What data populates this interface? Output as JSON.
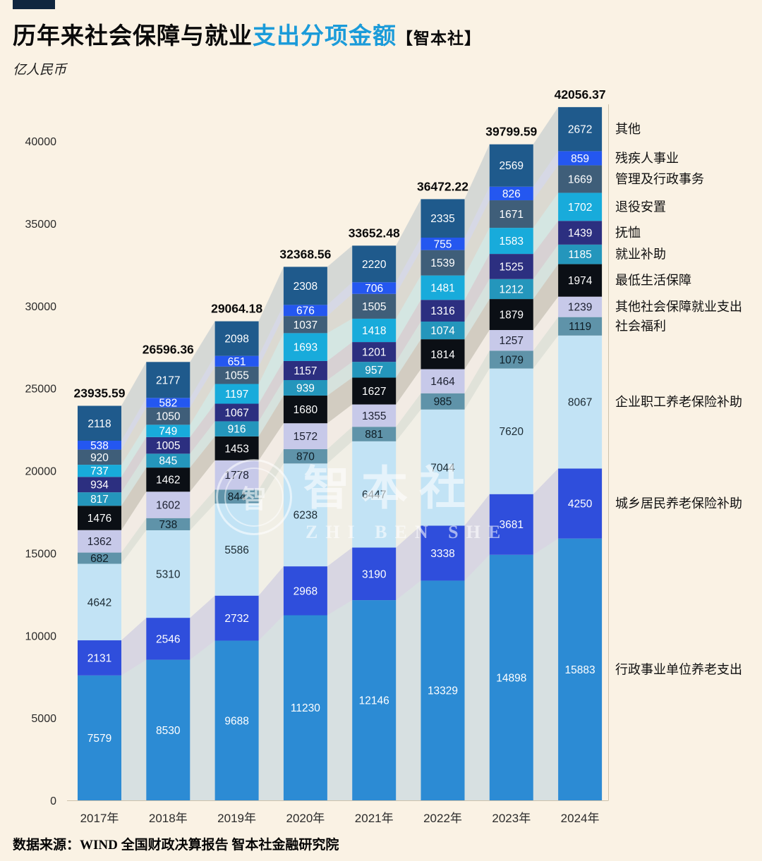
{
  "page": {
    "title_main": "历年来社会保障与就业",
    "title_highlight": "支出分项金额",
    "title_brand": "【智本社】",
    "unit_label": "亿人民币",
    "footer_source": "数据来源：WIND  全国财政决算报告  智本社金融研究院",
    "watermark": {
      "cn": "智本社",
      "en": "ZHI BEN SHE",
      "emblem": "智"
    },
    "colors": {
      "background": "#FAF2E4",
      "title_highlight": "#1B9BD9",
      "accent_bar": "#10263F"
    }
  },
  "chart_data": {
    "type": "bar",
    "stacked": true,
    "unit": "亿人民币",
    "legend_position": "right",
    "grid": false,
    "categories": [
      "2017年",
      "2018年",
      "2019年",
      "2020年",
      "2021年",
      "2022年",
      "2023年",
      "2024年"
    ],
    "totals": [
      "23935.59",
      "26596.36",
      "29064.18",
      "32368.56",
      "33652.48",
      "36472.22",
      "39799.59",
      "42056.37"
    ],
    "yticks": [
      0,
      5000,
      10000,
      15000,
      20000,
      25000,
      30000,
      35000,
      40000
    ],
    "ylim": [
      0,
      42500
    ],
    "series_bottom_to_top": [
      {
        "name": "行政事业单位养老支出",
        "color": "#2C8BD4",
        "label_color": "#ffffff",
        "values": [
          7579,
          8530,
          9688,
          11230,
          12146,
          13329,
          14898,
          15883
        ]
      },
      {
        "name": "城乡居民养老保险补助",
        "color": "#2F4EDC",
        "label_color": "#ffffff",
        "values": [
          2131,
          2546,
          2732,
          2968,
          3190,
          3338,
          3681,
          4250
        ]
      },
      {
        "name": "企业职工养老保险补助",
        "color": "#C2E3F5",
        "label_color": "#1c2b33",
        "values": [
          4642,
          5310,
          5586,
          6238,
          6447,
          7044,
          7620,
          8067
        ]
      },
      {
        "name": "社会福利",
        "color": "#5F93A9",
        "label_color": "#0e1d26",
        "values": [
          682,
          738,
          844,
          870,
          881,
          985,
          1079,
          1119
        ]
      },
      {
        "name": "其他社会保障就业支出",
        "color": "#C7C9E9",
        "label_color": "#1c2030",
        "values": [
          1362,
          1602,
          1778,
          1572,
          1355,
          1464,
          1257,
          1239
        ]
      },
      {
        "name": "最低生活保障",
        "color": "#0B0F15",
        "label_color": "#ffffff",
        "values": [
          1476,
          1462,
          1453,
          1680,
          1627,
          1814,
          1879,
          1974
        ]
      },
      {
        "name": "就业补助",
        "color": "#2496BC",
        "label_color": "#ffffff",
        "values": [
          817,
          845,
          916,
          939,
          957,
          1074,
          1212,
          1185
        ]
      },
      {
        "name": "抚恤",
        "color": "#2C2F80",
        "label_color": "#ffffff",
        "values": [
          934,
          1005,
          1067,
          1157,
          1201,
          1316,
          1525,
          1439
        ]
      },
      {
        "name": "退役安置",
        "color": "#18ABDB",
        "label_color": "#ffffff",
        "values": [
          737,
          749,
          1197,
          1693,
          1418,
          1481,
          1583,
          1702
        ]
      },
      {
        "name": "管理及行政事务",
        "color": "#3F5E79",
        "label_color": "#ffffff",
        "values": [
          920,
          1050,
          1055,
          1037,
          1505,
          1539,
          1671,
          1669
        ]
      },
      {
        "name": "残疾人事业",
        "color": "#2457F0",
        "label_color": "#ffffff",
        "values": [
          538,
          582,
          651,
          676,
          706,
          755,
          826,
          859
        ]
      },
      {
        "name": "其他",
        "color": "#1F5A8C",
        "label_color": "#ffffff",
        "values": [
          2118,
          2177,
          2098,
          2308,
          2220,
          2335,
          2569,
          2672
        ]
      }
    ]
  }
}
